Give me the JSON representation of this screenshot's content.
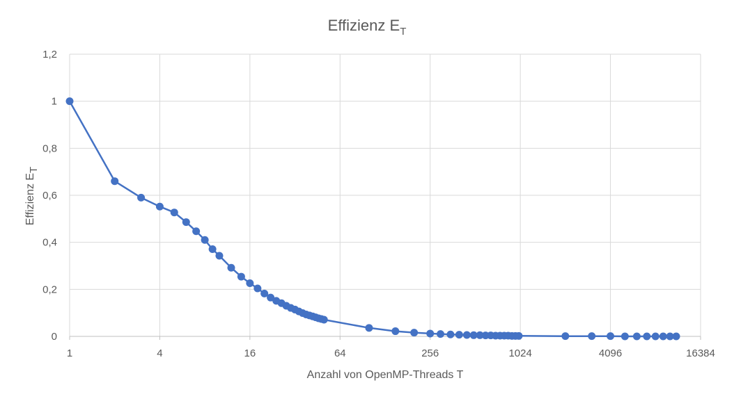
{
  "chart_data": {
    "type": "scatter",
    "title": {
      "main": "Effizienz E",
      "sub": "T"
    },
    "xlabel": "Anzahl von OpenMP-Threads T",
    "ylabel": {
      "main": "Effizienz E",
      "sub": "T"
    },
    "x_scale": "log2",
    "xlim": [
      1,
      16384
    ],
    "ylim": [
      0,
      1.2
    ],
    "x_ticks": [
      1,
      4,
      16,
      64,
      256,
      1024,
      4096,
      16384
    ],
    "x_tick_labels": [
      "1",
      "4",
      "16",
      "64",
      "256",
      "1024",
      "4096",
      "16384"
    ],
    "y_ticks": [
      0,
      0.2,
      0.4,
      0.6,
      0.8,
      1,
      1.2
    ],
    "y_tick_labels": [
      "0",
      "0,2",
      "0,4",
      "0,6",
      "0,8",
      "1",
      "1,2"
    ],
    "grid": true,
    "line_color": "#4472c4",
    "series": [
      {
        "connect_points": true,
        "x": [
          1,
          2,
          3,
          4,
          5,
          6,
          7,
          8,
          9,
          10,
          12,
          14,
          16,
          18,
          20,
          22,
          24,
          26,
          28,
          30,
          32,
          34,
          36,
          38,
          40,
          42,
          44,
          46,
          48,
          50,
          100,
          150,
          200,
          256,
          300,
          350,
          400,
          450,
          500,
          550,
          600,
          650,
          700,
          750,
          800,
          850,
          900,
          950,
          1000,
          2048,
          3072,
          4096,
          5120,
          6144,
          7168,
          8192,
          9216,
          10240,
          11264
        ],
        "y": [
          1.0,
          0.66,
          0.59,
          0.552,
          0.527,
          0.486,
          0.447,
          0.41,
          0.371,
          0.343,
          0.292,
          0.254,
          0.226,
          0.204,
          0.182,
          0.165,
          0.151,
          0.141,
          0.13,
          0.121,
          0.114,
          0.106,
          0.099,
          0.093,
          0.089,
          0.085,
          0.081,
          0.077,
          0.074,
          0.071,
          0.036,
          0.022,
          0.016,
          0.012,
          0.01,
          0.008,
          0.007,
          0.006,
          0.005,
          0.005,
          0.004,
          0.004,
          0.003,
          0.003,
          0.003,
          0.003,
          0.002,
          0.002,
          0.002,
          0.001,
          0.001,
          0.001,
          0.0,
          0.0,
          0.0,
          0.0,
          0.0,
          0.0,
          0.0
        ]
      }
    ]
  }
}
